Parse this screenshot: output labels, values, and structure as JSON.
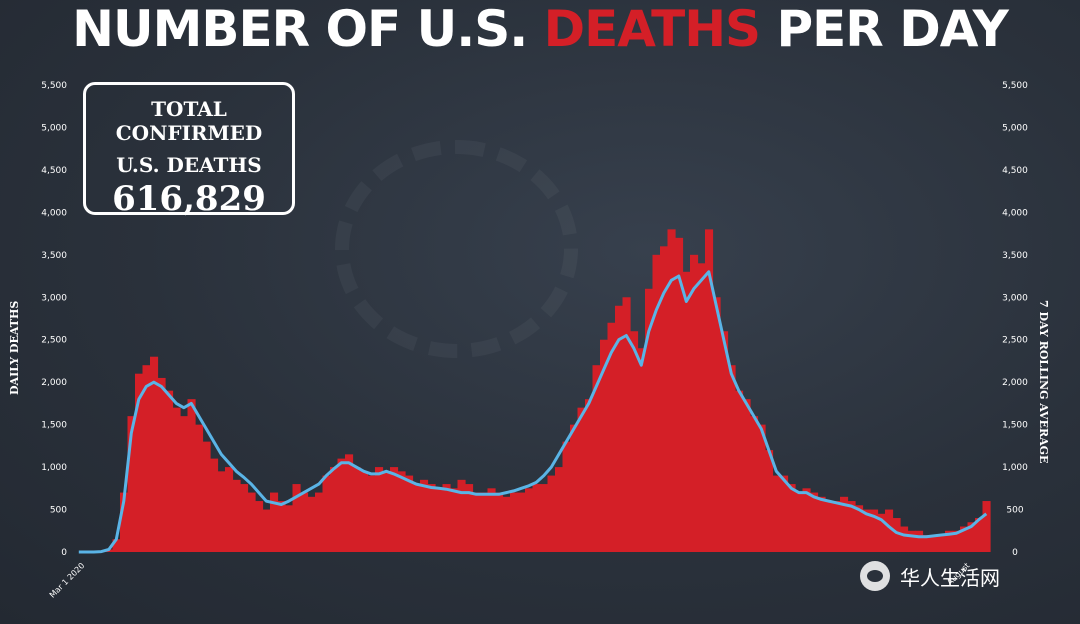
{
  "header": {
    "title_part1": "NUMBER OF U.S.",
    "title_part2": "DEATHS",
    "title_part3": "PER DAY"
  },
  "badge": {
    "line1": "TOTAL CONFIRMED",
    "line2": "U.S. DEATHS",
    "value": "616,829"
  },
  "watermark": {
    "text": "华人生活网"
  },
  "colors": {
    "bars": "#d41f27",
    "line": "#5ab4e6",
    "title_accent": "#d41f27"
  },
  "chart_data": {
    "type": "bar",
    "title": "NUMBER OF U.S. DEATHS PER DAY",
    "ylabel": "DAILY DEATHS",
    "y2label": "7 DAY ROLLING AVERAGE",
    "ylim": [
      0,
      5500
    ],
    "yticks": [
      "0",
      "500",
      "1,000",
      "1,500",
      "2,000",
      "2,500",
      "3,000",
      "3,500",
      "4,000",
      "4,500",
      "5,000",
      "5,500"
    ],
    "series": [
      {
        "name": "DAILY DEATHS",
        "type": "bar",
        "values": [
          0,
          0,
          0,
          5,
          30,
          150,
          700,
          1600,
          2100,
          2200,
          2300,
          2050,
          1900,
          1700,
          1600,
          1800,
          1500,
          1300,
          1100,
          950,
          1000,
          850,
          800,
          700,
          600,
          500,
          700,
          600,
          550,
          800,
          700,
          650,
          700,
          900,
          1000,
          1100,
          1150,
          1000,
          950,
          900,
          1000,
          950,
          1000,
          950,
          900,
          800,
          850,
          800,
          750,
          800,
          750,
          850,
          800,
          700,
          700,
          750,
          700,
          650,
          700,
          700,
          750,
          800,
          800,
          900,
          1000,
          1300,
          1500,
          1700,
          1800,
          2200,
          2500,
          2700,
          2900,
          3000,
          2600,
          2400,
          3100,
          3500,
          3600,
          3800,
          3700,
          3300,
          3500,
          3400,
          3800,
          3000,
          2600,
          2200,
          1900,
          1800,
          1600,
          1500,
          1200,
          900,
          900,
          800,
          700,
          750,
          700,
          650,
          600,
          600,
          650,
          600,
          550,
          500,
          500,
          450,
          500,
          400,
          300,
          250,
          250,
          200,
          200,
          200,
          250,
          250,
          300,
          350,
          400,
          600
        ]
      },
      {
        "name": "7 DAY ROLLING AVERAGE",
        "type": "line",
        "values": [
          0,
          0,
          0,
          5,
          30,
          150,
          600,
          1400,
          1800,
          1950,
          2000,
          1950,
          1850,
          1750,
          1700,
          1750,
          1600,
          1450,
          1300,
          1150,
          1050,
          950,
          880,
          800,
          700,
          600,
          580,
          560,
          600,
          650,
          700,
          750,
          800,
          900,
          980,
          1050,
          1050,
          1000,
          950,
          920,
          920,
          950,
          920,
          880,
          840,
          800,
          780,
          760,
          750,
          740,
          720,
          700,
          700,
          680,
          680,
          680,
          680,
          700,
          720,
          750,
          780,
          820,
          900,
          1000,
          1150,
          1300,
          1450,
          1600,
          1750,
          1950,
          2150,
          2350,
          2500,
          2550,
          2400,
          2200,
          2600,
          2850,
          3050,
          3200,
          3250,
          2950,
          3100,
          3200,
          3300,
          2900,
          2500,
          2100,
          1900,
          1750,
          1600,
          1450,
          1200,
          950,
          850,
          750,
          700,
          700,
          650,
          620,
          600,
          580,
          560,
          540,
          500,
          450,
          420,
          380,
          300,
          230,
          200,
          190,
          180,
          180,
          190,
          200,
          210,
          220,
          260,
          300,
          380,
          450
        ]
      }
    ],
    "x_first_label": "Mar 1 2020",
    "x_last_label": "August",
    "grid": false,
    "legend": "none"
  }
}
